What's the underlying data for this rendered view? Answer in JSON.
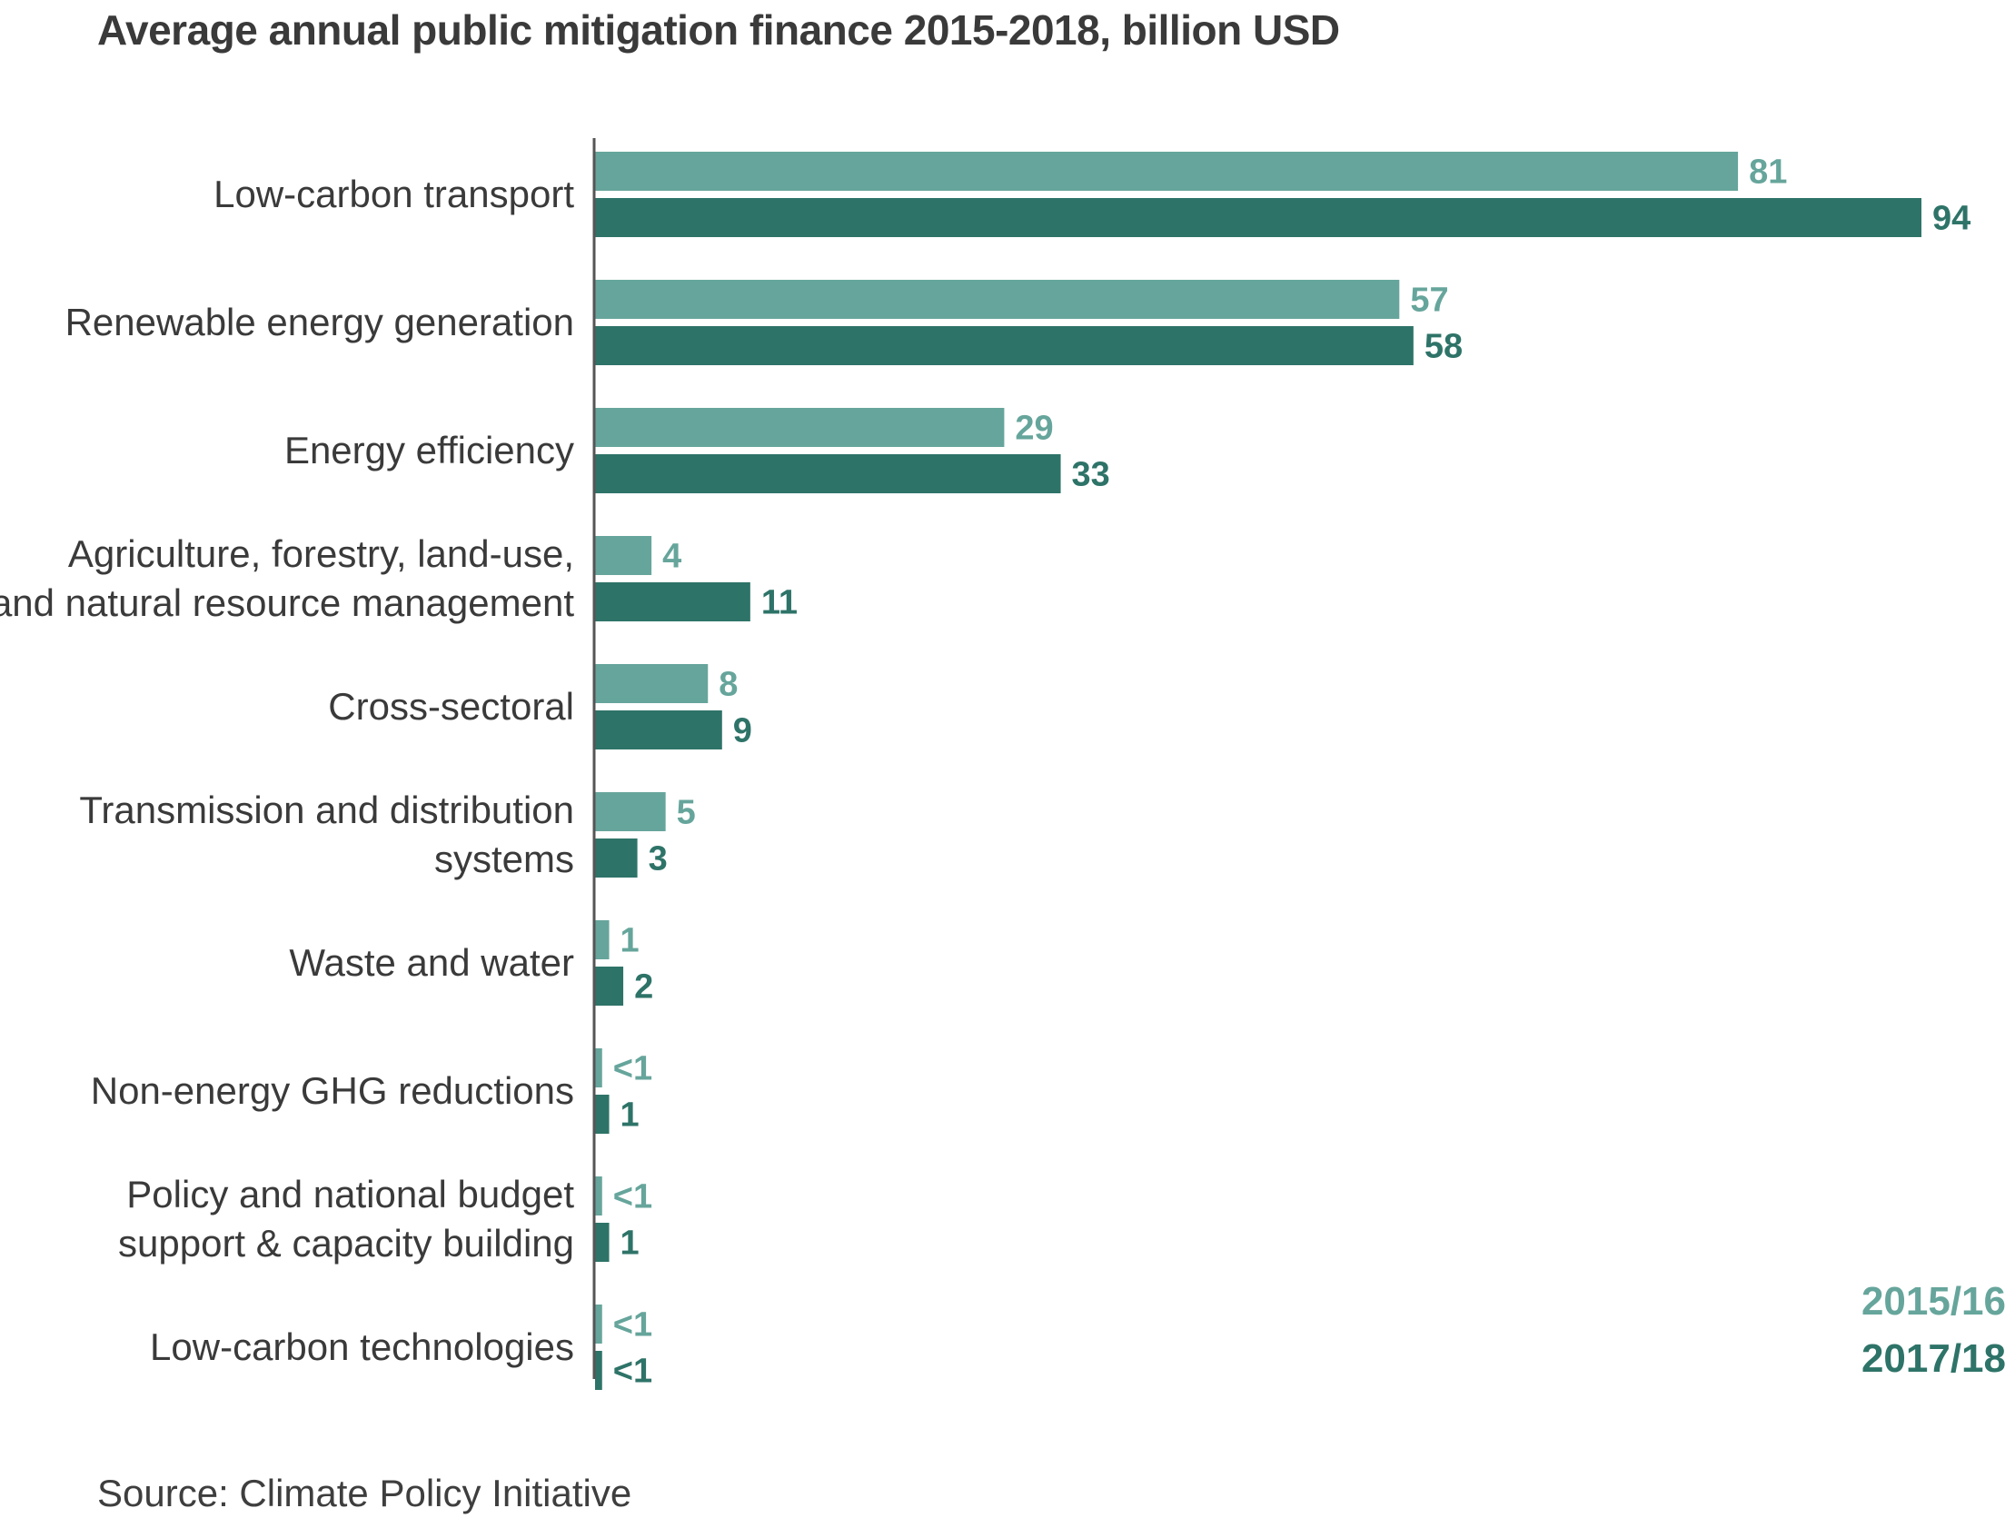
{
  "title": "Average annual public mitigation finance 2015-2018, billion USD",
  "source": "Source: Climate Policy Initiative",
  "colors": {
    "series_2015_16": "#66a59b",
    "series_2017_18": "#2e7368",
    "axis": "#555555"
  },
  "chart_data": {
    "type": "bar",
    "orientation": "horizontal",
    "title": "Average annual public mitigation finance 2015-2018, billion USD",
    "xlabel": "",
    "ylabel": "",
    "xlim": [
      0,
      94
    ],
    "grid": false,
    "legend_position": "bottom-right",
    "categories": [
      [
        "Low-carbon transport"
      ],
      [
        "Renewable energy generation"
      ],
      [
        "Energy efficiency"
      ],
      [
        "Agriculture, forestry, land-use,",
        "and natural resource management"
      ],
      [
        "Cross-sectoral"
      ],
      [
        "Transmission and distribution",
        "systems"
      ],
      [
        "Waste and water"
      ],
      [
        "Non-energy GHG reductions"
      ],
      [
        "Policy and national budget",
        "support & capacity building"
      ],
      [
        "Low-carbon technologies"
      ]
    ],
    "series": [
      {
        "name": "2015/16",
        "values": [
          81,
          57,
          29,
          4,
          8,
          5,
          1,
          0.5,
          0.5,
          0.5
        ],
        "labels": [
          "81",
          "57",
          "29",
          "4",
          "8",
          "5",
          "1",
          "<1",
          "<1",
          "<1"
        ]
      },
      {
        "name": "2017/18",
        "values": [
          94,
          58,
          33,
          11,
          9,
          3,
          2,
          1,
          1,
          0.5
        ],
        "labels": [
          "94",
          "58",
          "33",
          "11",
          "9",
          "3",
          "2",
          "1",
          "1",
          "<1"
        ]
      }
    ]
  }
}
